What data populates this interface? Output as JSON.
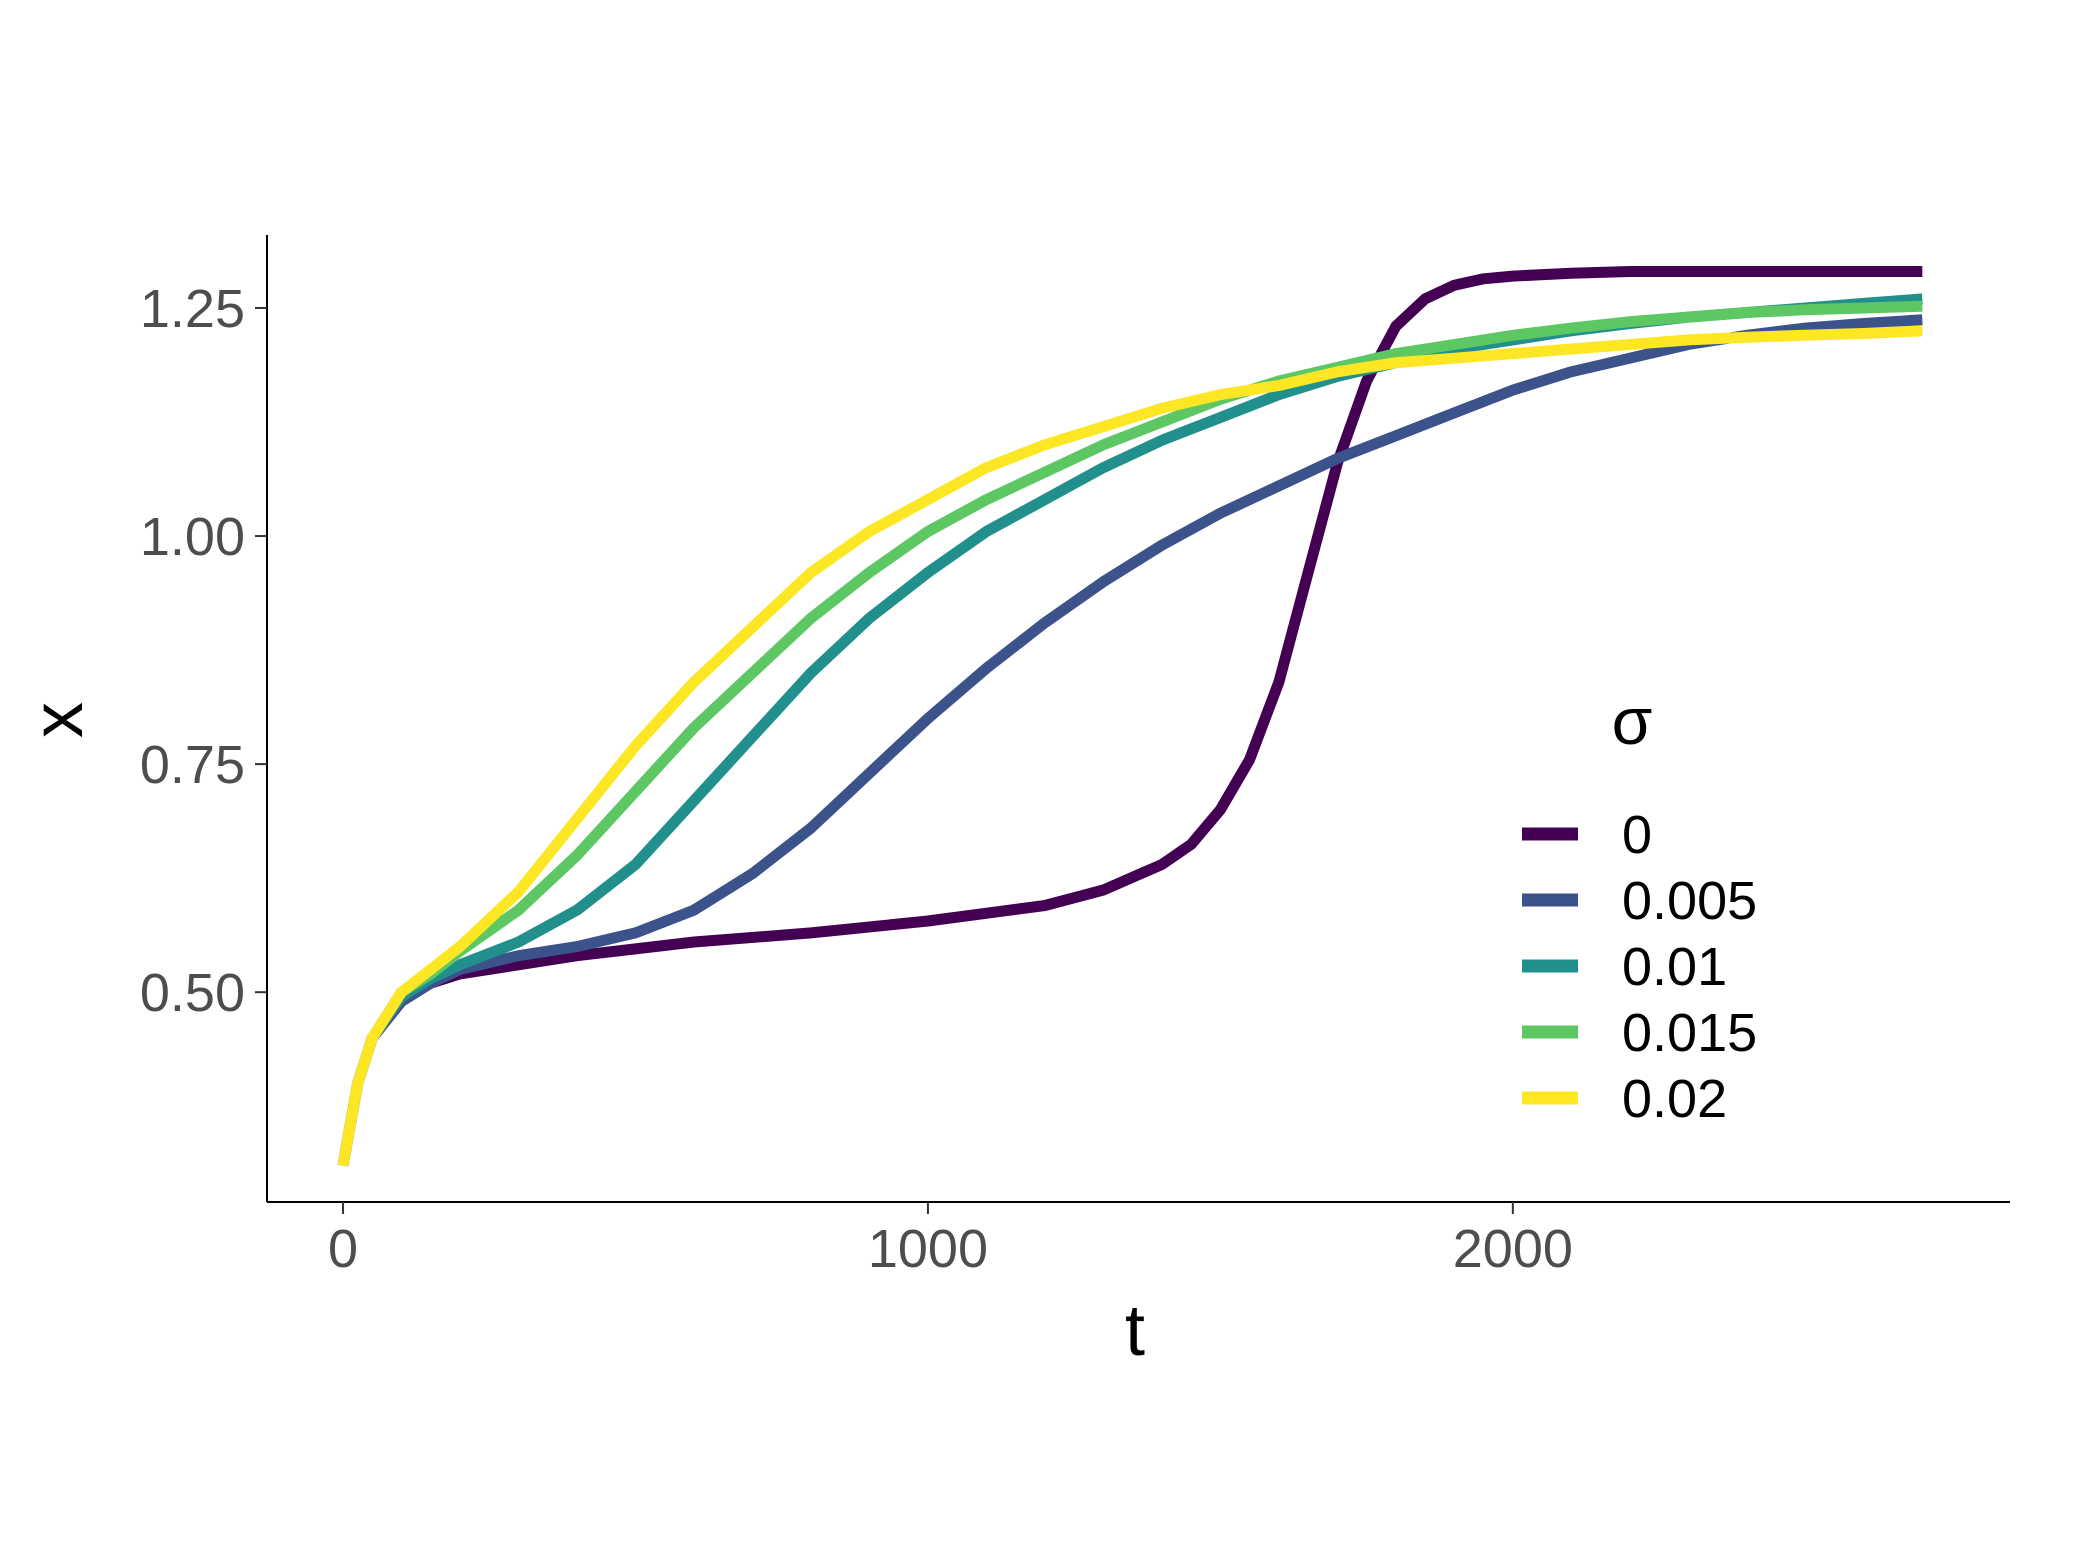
{
  "chart_data": {
    "type": "line",
    "title": "",
    "xlabel": "t",
    "ylabel": "x",
    "xlim": [
      -130,
      2850
    ],
    "ylim": [
      0.27,
      1.33
    ],
    "x_ticks": [
      0,
      1000,
      2000
    ],
    "x_tick_labels": [
      "0",
      "1000",
      "2000"
    ],
    "y_ticks": [
      0.5,
      0.75,
      1.0,
      1.25
    ],
    "y_tick_labels": [
      "0.50",
      "0.75",
      "1.00",
      "1.25"
    ],
    "grid": false,
    "legend": {
      "title": "σ",
      "position": "inside-bottom-right"
    },
    "series": [
      {
        "name": "0",
        "color": "#440154",
        "x": [
          0,
          25,
          50,
          100,
          150,
          200,
          300,
          400,
          600,
          800,
          1000,
          1200,
          1300,
          1400,
          1450,
          1500,
          1550,
          1600,
          1650,
          1700,
          1750,
          1800,
          1850,
          1900,
          1950,
          2000,
          2100,
          2200,
          2400,
          2700
        ],
        "y": [
          0.31,
          0.4,
          0.45,
          0.49,
          0.51,
          0.52,
          0.53,
          0.54,
          0.555,
          0.565,
          0.578,
          0.595,
          0.612,
          0.64,
          0.662,
          0.7,
          0.755,
          0.84,
          0.96,
          1.08,
          1.17,
          1.23,
          1.26,
          1.275,
          1.282,
          1.285,
          1.288,
          1.29,
          1.29,
          1.29
        ]
      },
      {
        "name": "0.005",
        "color": "#3b528b",
        "x": [
          0,
          25,
          50,
          100,
          150,
          200,
          300,
          400,
          500,
          600,
          700,
          800,
          900,
          1000,
          1100,
          1200,
          1300,
          1400,
          1500,
          1600,
          1700,
          1800,
          1900,
          2000,
          2100,
          2200,
          2300,
          2400,
          2500,
          2600,
          2700
        ],
        "y": [
          0.31,
          0.4,
          0.45,
          0.49,
          0.51,
          0.525,
          0.54,
          0.55,
          0.565,
          0.59,
          0.63,
          0.68,
          0.74,
          0.8,
          0.855,
          0.905,
          0.95,
          0.99,
          1.025,
          1.055,
          1.085,
          1.11,
          1.135,
          1.16,
          1.18,
          1.195,
          1.21,
          1.22,
          1.228,
          1.233,
          1.237
        ]
      },
      {
        "name": "0.01",
        "color": "#21908c",
        "x": [
          0,
          25,
          50,
          100,
          150,
          200,
          300,
          400,
          500,
          600,
          700,
          800,
          900,
          1000,
          1100,
          1200,
          1300,
          1400,
          1500,
          1600,
          1700,
          1800,
          1900,
          2000,
          2100,
          2200,
          2300,
          2400,
          2500,
          2600,
          2700
        ],
        "y": [
          0.31,
          0.4,
          0.45,
          0.495,
          0.515,
          0.53,
          0.555,
          0.59,
          0.64,
          0.71,
          0.78,
          0.85,
          0.91,
          0.96,
          1.005,
          1.04,
          1.075,
          1.105,
          1.13,
          1.155,
          1.175,
          1.19,
          1.205,
          1.215,
          1.225,
          1.233,
          1.24,
          1.245,
          1.25,
          1.255,
          1.26
        ]
      },
      {
        "name": "0.015",
        "color": "#5dc863",
        "x": [
          0,
          25,
          50,
          100,
          150,
          200,
          300,
          400,
          500,
          600,
          700,
          800,
          900,
          1000,
          1100,
          1200,
          1300,
          1400,
          1500,
          1600,
          1700,
          1800,
          1900,
          2000,
          2100,
          2200,
          2300,
          2400,
          2500,
          2600,
          2700
        ],
        "y": [
          0.31,
          0.4,
          0.45,
          0.5,
          0.52,
          0.545,
          0.59,
          0.65,
          0.72,
          0.79,
          0.85,
          0.91,
          0.96,
          1.005,
          1.04,
          1.07,
          1.1,
          1.125,
          1.15,
          1.17,
          1.185,
          1.2,
          1.21,
          1.22,
          1.228,
          1.235,
          1.24,
          1.245,
          1.248,
          1.25,
          1.252
        ]
      },
      {
        "name": "0.02",
        "color": "#fde725",
        "x": [
          0,
          25,
          50,
          100,
          150,
          200,
          300,
          400,
          500,
          600,
          700,
          800,
          900,
          1000,
          1100,
          1200,
          1300,
          1400,
          1500,
          1600,
          1700,
          1800,
          1900,
          2000,
          2100,
          2200,
          2300,
          2400,
          2500,
          2600,
          2700
        ],
        "y": [
          0.31,
          0.4,
          0.45,
          0.5,
          0.525,
          0.55,
          0.61,
          0.69,
          0.77,
          0.84,
          0.9,
          0.96,
          1.005,
          1.04,
          1.075,
          1.1,
          1.12,
          1.14,
          1.155,
          1.165,
          1.18,
          1.19,
          1.195,
          1.2,
          1.205,
          1.21,
          1.215,
          1.218,
          1.22,
          1.222,
          1.225
        ]
      }
    ]
  }
}
